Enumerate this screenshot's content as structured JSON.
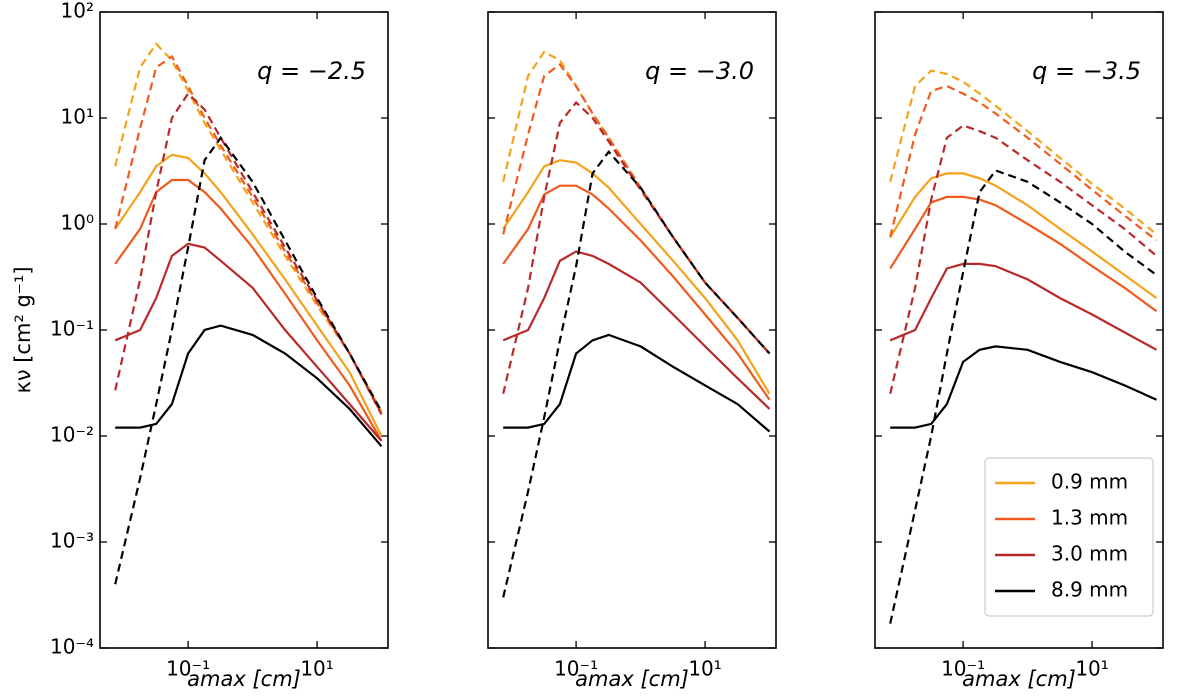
{
  "chart_data": [
    {
      "type": "line",
      "xscale": "log",
      "yscale": "log",
      "annotation": "q = −2.5",
      "xlabel": "amax [cm]",
      "ylabel": "κν [cm² g⁻¹]",
      "xlim": [
        0.0043,
        126
      ],
      "ylim": [
        0.0001,
        100
      ],
      "xticks": [
        {
          "value": 0.1,
          "label": "10⁻¹"
        },
        {
          "value": 10,
          "label": "10¹"
        }
      ],
      "yticks": [
        {
          "value": 0.0001,
          "label": "10⁻⁴"
        },
        {
          "value": 0.001,
          "label": "10⁻³"
        },
        {
          "value": 0.01,
          "label": "10⁻²"
        },
        {
          "value": 0.1,
          "label": "10⁻¹"
        },
        {
          "value": 1,
          "label": "10⁰"
        },
        {
          "value": 10,
          "label": "10¹"
        },
        {
          "value": 100,
          "label": "10²"
        }
      ],
      "x": [
        0.0074,
        0.018,
        0.032,
        0.056,
        0.1,
        0.18,
        0.32,
        1,
        3.2,
        10,
        32,
        100
      ],
      "series": [
        {
          "color": "#f5a21b",
          "values": [
            0.9,
            2.0,
            3.5,
            4.5,
            4.2,
            3.0,
            2.0,
            0.8,
            0.3,
            0.11,
            0.04,
            0.01
          ]
        },
        {
          "color": "#f05a1e",
          "values": [
            0.42,
            0.9,
            2.0,
            2.6,
            2.6,
            2.0,
            1.4,
            0.6,
            0.22,
            0.08,
            0.03,
            0.009
          ]
        },
        {
          "color": "#b82a2a",
          "values": [
            0.08,
            0.1,
            0.2,
            0.5,
            0.65,
            0.6,
            0.45,
            0.25,
            0.1,
            0.045,
            0.02,
            0.009
          ]
        },
        {
          "color": "#000000",
          "values": [
            0.012,
            0.012,
            0.013,
            0.02,
            0.06,
            0.1,
            0.11,
            0.09,
            0.06,
            0.035,
            0.018,
            0.008
          ]
        },
        {
          "color": "#f5a21b",
          "dashed": true,
          "values": [
            3.5,
            30,
            50,
            35,
            18,
            9,
            5,
            1.6,
            0.5,
            0.17,
            0.06,
            0.017
          ]
        },
        {
          "color": "#f05a1e",
          "dashed": true,
          "values": [
            0.9,
            8,
            30,
            38,
            20,
            10,
            5.5,
            1.8,
            0.55,
            0.18,
            0.06,
            0.016
          ]
        },
        {
          "color": "#b82a2a",
          "dashed": true,
          "values": [
            0.027,
            0.3,
            2,
            10,
            17,
            12,
            6.5,
            2.0,
            0.6,
            0.19,
            0.06,
            0.016
          ]
        },
        {
          "color": "#000000",
          "dashed": true,
          "values": [
            0.0004,
            0.004,
            0.02,
            0.1,
            0.6,
            4,
            6.5,
            2.5,
            0.7,
            0.2,
            0.06,
            0.017
          ]
        }
      ]
    },
    {
      "type": "line",
      "xscale": "log",
      "yscale": "log",
      "annotation": "q = −3.0",
      "xlabel": "amax [cm]",
      "xlim": [
        0.0043,
        126
      ],
      "ylim": [
        0.0001,
        100
      ],
      "xticks": [
        {
          "value": 0.1,
          "label": "10⁻¹"
        },
        {
          "value": 10,
          "label": "10¹"
        }
      ],
      "yticks": [
        0.0001,
        0.001,
        0.01,
        0.1,
        1,
        10,
        100
      ],
      "x": [
        0.0074,
        0.018,
        0.032,
        0.056,
        0.1,
        0.18,
        0.32,
        1,
        3.2,
        10,
        32,
        100
      ],
      "series": [
        {
          "color": "#f5a21b",
          "values": [
            0.9,
            2.0,
            3.5,
            4.0,
            3.8,
            3.0,
            2.2,
            1.0,
            0.45,
            0.2,
            0.08,
            0.025
          ]
        },
        {
          "color": "#f05a1e",
          "values": [
            0.42,
            0.9,
            1.9,
            2.3,
            2.3,
            1.9,
            1.4,
            0.7,
            0.32,
            0.14,
            0.06,
            0.022
          ]
        },
        {
          "color": "#b82a2a",
          "values": [
            0.08,
            0.1,
            0.2,
            0.45,
            0.55,
            0.5,
            0.42,
            0.28,
            0.14,
            0.07,
            0.035,
            0.018
          ]
        },
        {
          "color": "#000000",
          "values": [
            0.012,
            0.012,
            0.013,
            0.02,
            0.06,
            0.08,
            0.09,
            0.07,
            0.045,
            0.03,
            0.02,
            0.011
          ]
        },
        {
          "color": "#f5a21b",
          "dashed": true,
          "values": [
            2.5,
            25,
            42,
            35,
            20,
            11,
            6.5,
            2.2,
            0.75,
            0.28,
            0.13,
            0.06
          ]
        },
        {
          "color": "#f05a1e",
          "dashed": true,
          "values": [
            0.8,
            7,
            25,
            32,
            20,
            11,
            6.5,
            2.2,
            0.75,
            0.28,
            0.13,
            0.06
          ]
        },
        {
          "color": "#b82a2a",
          "dashed": true,
          "values": [
            0.025,
            0.25,
            1.8,
            9,
            14,
            10,
            6,
            2.1,
            0.75,
            0.28,
            0.13,
            0.06
          ]
        },
        {
          "color": "#000000",
          "dashed": true,
          "values": [
            0.0003,
            0.003,
            0.015,
            0.08,
            0.4,
            3,
            4.8,
            2.2,
            0.75,
            0.28,
            0.13,
            0.06
          ]
        }
      ]
    },
    {
      "type": "line",
      "xscale": "log",
      "yscale": "log",
      "annotation": "q = −3.5",
      "xlabel": "amax [cm]",
      "xlim": [
        0.0043,
        126
      ],
      "ylim": [
        0.0001,
        100
      ],
      "xticks": [
        {
          "value": 0.1,
          "label": "10⁻¹"
        },
        {
          "value": 10,
          "label": "10¹"
        }
      ],
      "yticks": [
        0.0001,
        0.001,
        0.01,
        0.1,
        1,
        10,
        100
      ],
      "legend": "lower right",
      "x": [
        0.0074,
        0.018,
        0.032,
        0.056,
        0.1,
        0.18,
        0.32,
        1,
        3.2,
        10,
        32,
        100
      ],
      "series": [
        {
          "name": "0.9 mm",
          "color": "#f5a21b",
          "values": [
            0.75,
            1.8,
            2.7,
            3.0,
            3.0,
            2.7,
            2.3,
            1.5,
            0.9,
            0.55,
            0.33,
            0.2
          ]
        },
        {
          "name": "1.3 mm",
          "color": "#f05a1e",
          "values": [
            0.38,
            0.9,
            1.6,
            1.8,
            1.8,
            1.7,
            1.5,
            1.0,
            0.65,
            0.4,
            0.25,
            0.15
          ]
        },
        {
          "name": "3.0 mm",
          "color": "#b82a2a",
          "values": [
            0.08,
            0.1,
            0.2,
            0.38,
            0.42,
            0.42,
            0.4,
            0.3,
            0.2,
            0.14,
            0.095,
            0.065
          ]
        },
        {
          "name": "8.9 mm",
          "color": "#000000",
          "values": [
            0.012,
            0.012,
            0.013,
            0.02,
            0.05,
            0.065,
            0.07,
            0.065,
            0.05,
            0.04,
            0.03,
            0.022
          ]
        },
        {
          "color": "#f5a21b",
          "dashed": true,
          "values": [
            2.5,
            20,
            28,
            26,
            22,
            17,
            13,
            7.5,
            4.2,
            2.4,
            1.4,
            0.8
          ]
        },
        {
          "color": "#f05a1e",
          "dashed": true,
          "values": [
            0.75,
            7,
            18,
            20,
            17,
            14,
            11,
            6.5,
            3.7,
            2.1,
            1.2,
            0.7
          ]
        },
        {
          "color": "#b82a2a",
          "dashed": true,
          "values": [
            0.025,
            0.25,
            1.7,
            6.5,
            8.5,
            7.5,
            6.5,
            4,
            2.5,
            1.5,
            0.9,
            0.5
          ]
        },
        {
          "color": "#000000",
          "dashed": true,
          "values": [
            0.00017,
            0.002,
            0.01,
            0.06,
            0.35,
            2,
            3.2,
            2.5,
            1.6,
            1.0,
            0.55,
            0.33
          ]
        }
      ]
    }
  ]
}
